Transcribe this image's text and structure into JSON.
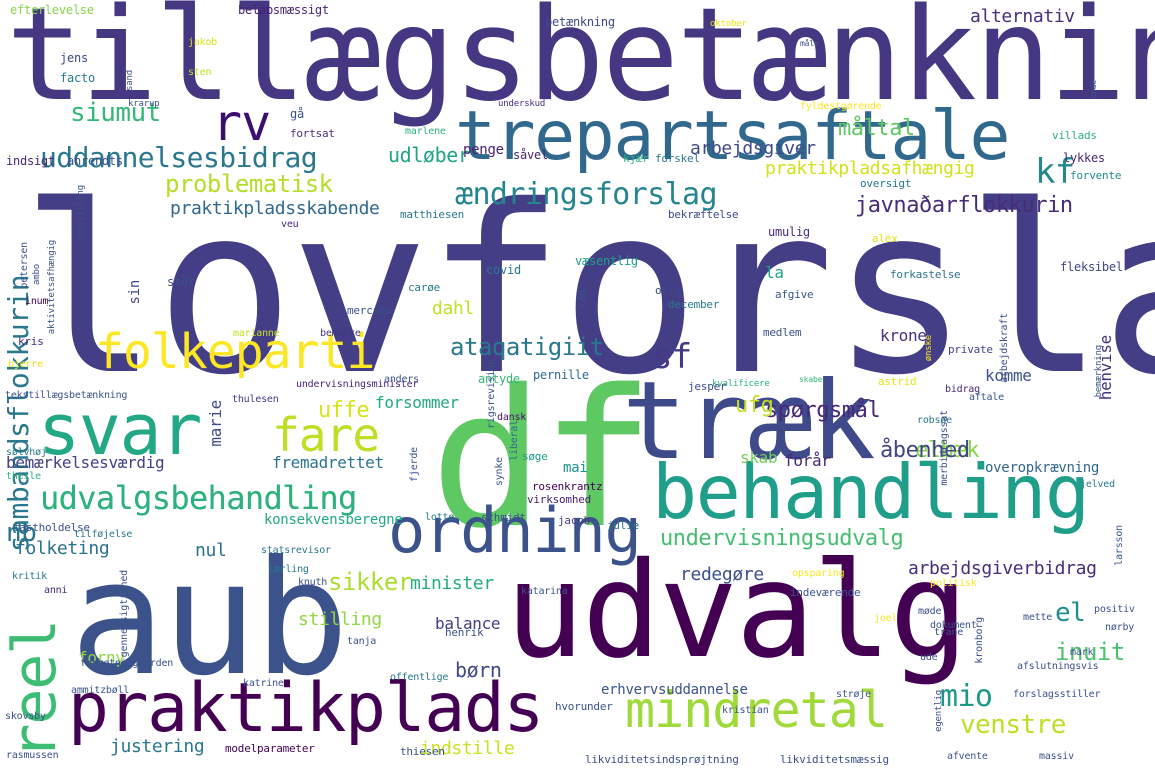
{
  "words": [
    {
      "text": "lovforslag",
      "color": "#433e85"
    },
    {
      "text": "tillægsbetænkning",
      "color": "#453781"
    },
    {
      "text": "df",
      "color": "#5ec962"
    },
    {
      "text": "aub",
      "color": "#3b528b"
    },
    {
      "text": "udvalg",
      "color": "#440154"
    },
    {
      "text": "træk",
      "color": "#3e4a89"
    },
    {
      "text": "trepartsaftale",
      "color": "#31688e"
    },
    {
      "text": "behandling",
      "color": "#1f9e89"
    },
    {
      "text": "ordning",
      "color": "#3b528b"
    },
    {
      "text": "svar",
      "color": "#22a884"
    },
    {
      "text": "praktikplads",
      "color": "#440154"
    },
    {
      "text": "mindretal",
      "color": "#a0da39"
    },
    {
      "text": "folkeparti",
      "color": "#fde725"
    },
    {
      "text": "fare",
      "color": "#bddf26"
    },
    {
      "text": "udvalgsbehandling",
      "color": "#2db27d"
    },
    {
      "text": "uddannelsesbidrag",
      "color": "#2a788e"
    },
    {
      "text": "ændringsforslag",
      "color": "#25858e"
    },
    {
      "text": "problematisk",
      "color": "#b5de2b"
    },
    {
      "text": "reel",
      "color": "#3dbc74"
    },
    {
      "text": "rv",
      "color": "#3b0f70"
    },
    {
      "text": "sambandsflokkurin",
      "color": "#2a788e"
    },
    {
      "text": "siumut",
      "color": "#35b779"
    },
    {
      "text": "sf",
      "color": "#443983"
    },
    {
      "text": "kf",
      "color": "#23898e"
    },
    {
      "text": "ataqatigiit",
      "color": "#2a788e"
    },
    {
      "text": "javnaðarflokkurin",
      "color": "#472c7a"
    },
    {
      "text": "undervisningsudvalg",
      "color": "#44bf70"
    },
    {
      "text": "spørgsmål",
      "color": "#482878"
    },
    {
      "text": "uffe",
      "color": "#d8e219"
    },
    {
      "text": "elbæk",
      "color": "#84d44b"
    },
    {
      "text": "åbenhed",
      "color": "#414487"
    },
    {
      "text": "arbejdsgiverbidrag",
      "color": "#472d7b"
    },
    {
      "text": "venstre",
      "color": "#bddf26"
    },
    {
      "text": "inuit",
      "color": "#4ac16d"
    },
    {
      "text": "mio",
      "color": "#1f988b"
    },
    {
      "text": "el",
      "color": "#218f8d"
    },
    {
      "text": "børn",
      "color": "#3e4989"
    },
    {
      "text": "sikker",
      "color": "#addc30"
    },
    {
      "text": "nb",
      "color": "#2c728e"
    },
    {
      "text": "praktikpladsafhængig",
      "color": "#d2e21b"
    },
    {
      "text": "måltal",
      "color": "#5ec962"
    },
    {
      "text": "alternativ",
      "color": "#46307e"
    },
    {
      "text": "udløber",
      "color": "#20a486"
    },
    {
      "text": "arbejdsgiver",
      "color": "#3e4a89"
    },
    {
      "text": "praktikpladsskabende",
      "color": "#31688e"
    },
    {
      "text": "ufg",
      "color": "#c2df23"
    },
    {
      "text": "dahl",
      "color": "#c0df25"
    },
    {
      "text": "skab",
      "color": "#6ece58"
    },
    {
      "text": "henvise",
      "color": "#46327e"
    },
    {
      "text": "komme",
      "color": "#3a538b"
    },
    {
      "text": "krone",
      "color": "#462f7e"
    },
    {
      "text": "la",
      "color": "#1fa187"
    },
    {
      "text": "forsommer",
      "color": "#22a884"
    },
    {
      "text": "marie",
      "color": "#3e4989"
    },
    {
      "text": "bemærkelsesværdig",
      "color": "#424086"
    },
    {
      "text": "fremadrettet",
      "color": "#2b748e"
    },
    {
      "text": "udvalgsbehandling",
      "color": "#2db27d"
    },
    {
      "text": "konsekvensberegne",
      "color": "#22a884"
    },
    {
      "text": "folketing",
      "color": "#2c728e"
    },
    {
      "text": "nul",
      "color": "#2c728e"
    },
    {
      "text": "minister",
      "color": "#25ac82"
    },
    {
      "text": "redegøre",
      "color": "#3b528b"
    },
    {
      "text": "stilling",
      "color": "#92d742"
    },
    {
      "text": "balance",
      "color": "#433e85"
    },
    {
      "text": "forny",
      "color": "#8fd744"
    },
    {
      "text": "justering",
      "color": "#2a778e"
    },
    {
      "text": "indstille",
      "color": "#cae11f"
    },
    {
      "text": "erhvervsuddannelse",
      "color": "#3b528b"
    },
    {
      "text": "forår",
      "color": "#482576"
    },
    {
      "text": "overopkrævning",
      "color": "#31688e"
    },
    {
      "text": "mai",
      "color": "#1f968b"
    },
    {
      "text": "sin",
      "color": "#404688"
    },
    {
      "text": "gå",
      "color": "#3b528b"
    },
    {
      "text": "penge",
      "color": "#482173"
    },
    {
      "text": "efterlevelse",
      "color": "#86d549"
    },
    {
      "text": "beløbsmæssigt",
      "color": "#482475"
    },
    {
      "text": "jakob",
      "color": "#d8e219"
    },
    {
      "text": "sten",
      "color": "#c8e020"
    },
    {
      "text": "jens",
      "color": "#3f4788"
    },
    {
      "text": "facto",
      "color": "#297b8e"
    },
    {
      "text": "betænkning",
      "color": "#3f4889"
    },
    {
      "text": "oktober",
      "color": "#f1e51d"
    },
    {
      "text": "underskud",
      "color": "#472f7d"
    },
    {
      "text": "fyldestgørende",
      "color": "#fde725"
    },
    {
      "text": "villads",
      "color": "#2db27d"
    },
    {
      "text": "fortsat",
      "color": "#46307e"
    },
    {
      "text": "marlene",
      "color": "#2db27d"
    },
    {
      "text": "indsigt",
      "color": "#482878"
    },
    {
      "text": "ahrendts",
      "color": "#3b528b"
    },
    {
      "text": "såvel",
      "color": "#482576"
    },
    {
      "text": "kjær",
      "color": "#2db27d"
    },
    {
      "text": "forskel",
      "color": "#2a788e"
    },
    {
      "text": "lykkes",
      "color": "#482878"
    },
    {
      "text": "forvente",
      "color": "#23898e"
    },
    {
      "text": "oversigt",
      "color": "#2a788e"
    },
    {
      "text": "bekræftelse",
      "color": "#3e4a89"
    },
    {
      "text": "matthiesen",
      "color": "#2a788e"
    },
    {
      "text": "veu",
      "color": "#482475"
    },
    {
      "text": "umulig",
      "color": "#472c7a"
    },
    {
      "text": "alex",
      "color": "#e5e419"
    },
    {
      "text": "væsentlig",
      "color": "#1f9e89"
    },
    {
      "text": "forkastelse",
      "color": "#2c728e"
    },
    {
      "text": "fleksibel",
      "color": "#3f4788"
    },
    {
      "text": "covid",
      "color": "#2a788e"
    },
    {
      "text": "orla",
      "color": "#3e4989"
    },
    {
      "text": "december",
      "color": "#2a788e"
    },
    {
      "text": "afgive",
      "color": "#38588c"
    },
    {
      "text": "stor",
      "color": "#3a538b"
    },
    {
      "text": "mercado",
      "color": "#3b528b"
    },
    {
      "text": "carøe",
      "color": "#2a788e"
    },
    {
      "text": "inum",
      "color": "#440154"
    },
    {
      "text": "kris",
      "color": "#482878"
    },
    {
      "text": "marianne",
      "color": "#c2df23"
    },
    {
      "text": "bemærke",
      "color": "#443983"
    },
    {
      "text": "medlem",
      "color": "#3a538b"
    },
    {
      "text": "private",
      "color": "#404688"
    },
    {
      "text": "bjerre",
      "color": "#e5e419"
    },
    {
      "text": "undervisningsminister",
      "color": "#482475"
    },
    {
      "text": "anders",
      "color": "#3b528b"
    },
    {
      "text": "antyde",
      "color": "#35b779"
    },
    {
      "text": "pernille",
      "color": "#31688e"
    },
    {
      "text": "jesper",
      "color": "#3e4a89"
    },
    {
      "text": "kvalificere",
      "color": "#2db27d"
    },
    {
      "text": "skabe",
      "color": "#35b779"
    },
    {
      "text": "astrid",
      "color": "#e5e419"
    },
    {
      "text": "bidrag",
      "color": "#482878"
    },
    {
      "text": "aftale",
      "color": "#3b528b"
    },
    {
      "text": "robsøe",
      "color": "#2a788e"
    },
    {
      "text": "tekstillægsbetænkning",
      "color": "#3b528b"
    },
    {
      "text": "thulesen",
      "color": "#443983"
    },
    {
      "text": "dansk",
      "color": "#471063"
    },
    {
      "text": "liberal",
      "color": "#31688e"
    },
    {
      "text": "søge",
      "color": "#1f9e89"
    },
    {
      "text": "theile",
      "color": "#2db27d"
    },
    {
      "text": "sølvhøj",
      "color": "#2a788e"
    },
    {
      "text": "rosenkrantz",
      "color": "#440154"
    },
    {
      "text": "virksomhed",
      "color": "#482173"
    },
    {
      "text": "schmidt",
      "color": "#3b528b"
    },
    {
      "text": "jacob",
      "color": "#433e85"
    },
    {
      "text": "julie",
      "color": "#2a788e"
    },
    {
      "text": "lotte",
      "color": "#2a788e"
    },
    {
      "text": "fastholdelse",
      "color": "#3b528b"
    },
    {
      "text": "tilføjelse",
      "color": "#2a788e"
    },
    {
      "text": "statsrevisor",
      "color": "#2a788e"
    },
    {
      "text": "jelved",
      "color": "#2a788e"
    },
    {
      "text": "kritik",
      "color": "#2a788e"
    },
    {
      "text": "anni",
      "color": "#472c7a"
    },
    {
      "text": "lærling",
      "color": "#2a788e"
    },
    {
      "text": "knuth",
      "color": "#3b528b"
    },
    {
      "text": "katarina",
      "color": "#3b528b"
    },
    {
      "text": "opsparing",
      "color": "#fde725"
    },
    {
      "text": "politisk",
      "color": "#fde725"
    },
    {
      "text": "indeværende",
      "color": "#3b528b"
    },
    {
      "text": "møde",
      "color": "#3b528b"
    },
    {
      "text": "dokument",
      "color": "#3b528b"
    },
    {
      "text": "positiv",
      "color": "#3b528b"
    },
    {
      "text": "nørby",
      "color": "#3b528b"
    },
    {
      "text": "joel",
      "color": "#fde725"
    },
    {
      "text": "mette",
      "color": "#3b528b"
    },
    {
      "text": "trane",
      "color": "#3b528b"
    },
    {
      "text": "henrik",
      "color": "#3b528b"
    },
    {
      "text": "tanja",
      "color": "#3b528b"
    },
    {
      "text": "forretningsorden",
      "color": "#3b528b"
    },
    {
      "text": "ammitzbøll",
      "color": "#3b528b"
    },
    {
      "text": "katrine",
      "color": "#3b528b"
    },
    {
      "text": "offentlige",
      "color": "#2a788e"
    },
    {
      "text": "ude",
      "color": "#3b528b"
    },
    {
      "text": "mark",
      "color": "#3b528b"
    },
    {
      "text": "afslutningsvis",
      "color": "#3b528b"
    },
    {
      "text": "forslagsstiller",
      "color": "#3b528b"
    },
    {
      "text": "strøje",
      "color": "#3b528b"
    },
    {
      "text": "kristian",
      "color": "#3b528b"
    },
    {
      "text": "hvorunder",
      "color": "#3b528b"
    },
    {
      "text": "skovsby",
      "color": "#3b528b"
    },
    {
      "text": "modelparameter",
      "color": "#440154"
    },
    {
      "text": "thiesen",
      "color": "#3b528b"
    },
    {
      "text": "likviditetsindsprøjtning",
      "color": "#3b528b"
    },
    {
      "text": "likviditetsmæssig",
      "color": "#3b528b"
    },
    {
      "text": "afvente",
      "color": "#3b528b"
    },
    {
      "text": "massiv",
      "color": "#3b528b"
    },
    {
      "text": "rasmussen",
      "color": "#3b528b"
    },
    {
      "text": "gennemsigtighed",
      "color": "#3b528b"
    },
    {
      "text": "egentlig",
      "color": "#3b528b"
    },
    {
      "text": "larsson",
      "color": "#3b528b"
    },
    {
      "text": "fjerde",
      "color": "#3b528b"
    },
    {
      "text": "synke",
      "color": "#3b528b"
    },
    {
      "text": "kronborg",
      "color": "#3b528b"
    },
    {
      "text": "merbidragssat",
      "color": "#3b528b"
    },
    {
      "text": "arbejdskraft",
      "color": "#3b528b"
    },
    {
      "text": "ønske",
      "color": "#fde725"
    },
    {
      "text": "bemærkning",
      "color": "#3b528b"
    },
    {
      "text": "rigsrevision",
      "color": "#3b528b"
    },
    {
      "text": "råd",
      "color": "#3b528b"
    },
    {
      "text": "indstilling",
      "color": "#3b528b"
    },
    {
      "text": "aktivitetsafhængig",
      "color": "#3b528b"
    },
    {
      "text": "petersen",
      "color": "#3b528b"
    },
    {
      "text": "ambo",
      "color": "#3b528b"
    },
    {
      "text": "sand",
      "color": "#3b528b"
    },
    {
      "text": "krarup",
      "color": "#3b528b"
    },
    {
      "text": "unde",
      "color": "#3b528b"
    },
    {
      "text": "måle",
      "color": "#3b528b"
    },
    {
      "text": "pia",
      "color": "#3b528b"
    }
  ]
}
